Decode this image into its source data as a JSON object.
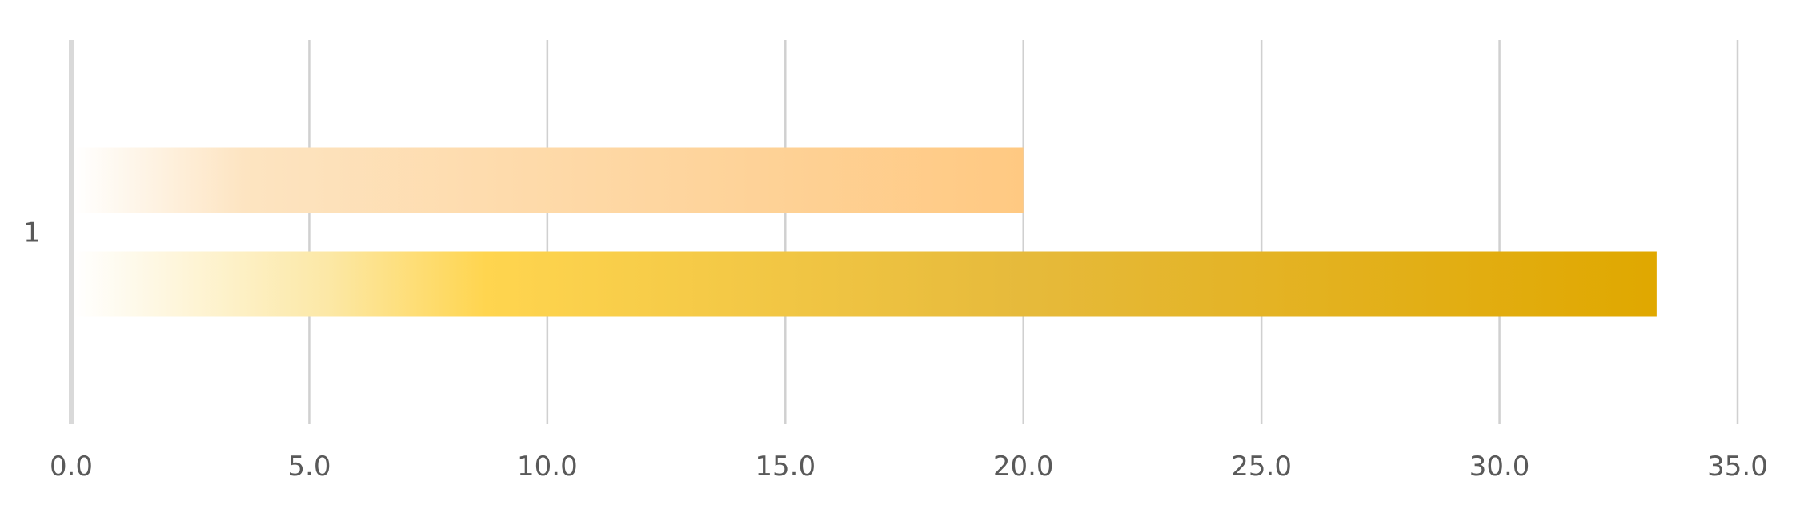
{
  "chart_data": {
    "type": "bar",
    "orientation": "horizontal",
    "categories": [
      "1"
    ],
    "series": [
      {
        "values": [
          20.0
        ],
        "color": "#FFC982",
        "style": "gradient-fade-from-white"
      },
      {
        "values": [
          33.3
        ],
        "color": "#E0A800",
        "style": "gradient-fade-from-white"
      }
    ],
    "title": "",
    "xlabel": "",
    "ylabel": "",
    "xlim": [
      0,
      35
    ],
    "x_ticks": [
      "0.0",
      "5.0",
      "10.0",
      "15.0",
      "20.0",
      "25.0",
      "30.0",
      "35.0"
    ],
    "x_tick_values": [
      0,
      5,
      10,
      15,
      20,
      25,
      30,
      35
    ],
    "grid": true,
    "legend": "none",
    "gridline_color": "#D0D0D0",
    "axis_color": "#D9D9D9",
    "label_color": "#595959"
  }
}
